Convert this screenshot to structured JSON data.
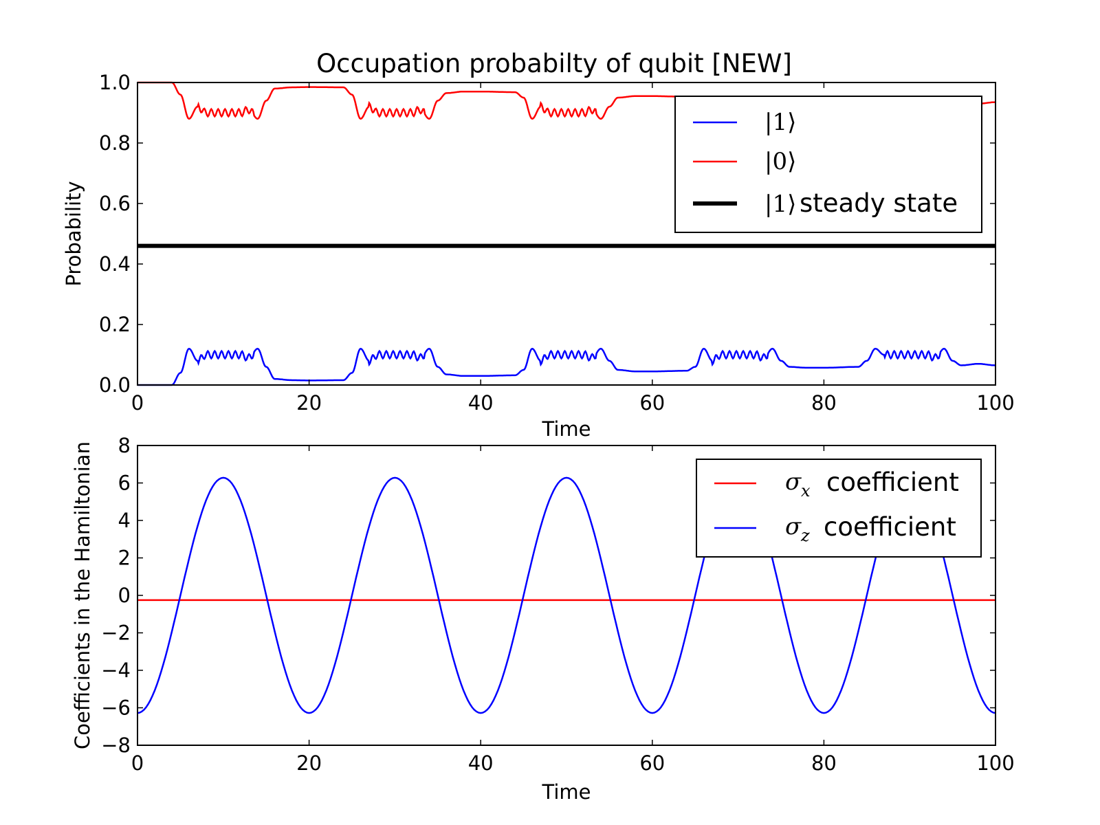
{
  "chart_data": [
    {
      "type": "line",
      "title": "Occupation probabilty of qubit [NEW]",
      "xlabel": "Time",
      "ylabel": "Probability",
      "xlim": [
        0,
        100
      ],
      "ylim": [
        0.0,
        1.0
      ],
      "xticks": [
        "0",
        "20",
        "40",
        "60",
        "80",
        "100"
      ],
      "yticks": [
        "0.0",
        "0.2",
        "0.4",
        "0.6",
        "0.8",
        "1.0"
      ],
      "grid": false,
      "legend_position": "top-right",
      "series": [
        {
          "name": "|1⟩",
          "color": "#0000ff",
          "x": [
            0,
            4,
            5,
            6,
            7,
            8,
            10,
            12,
            13,
            14,
            15,
            16,
            18,
            20,
            24,
            25,
            26,
            27,
            28,
            30,
            32,
            33,
            34,
            35,
            36,
            38,
            40,
            44,
            45,
            46,
            47,
            48,
            50,
            52,
            53,
            54,
            55,
            56,
            58,
            60,
            64,
            65,
            66,
            67,
            68,
            70,
            72,
            73,
            74,
            75,
            76,
            78,
            80,
            84,
            85,
            86,
            87,
            88,
            90,
            92,
            93,
            94,
            95,
            96,
            98,
            100
          ],
          "values": [
            0.0,
            0.0,
            0.04,
            0.12,
            0.08,
            0.1,
            0.1,
            0.1,
            0.09,
            0.12,
            0.06,
            0.02,
            0.016,
            0.015,
            0.016,
            0.04,
            0.12,
            0.08,
            0.1,
            0.1,
            0.1,
            0.09,
            0.12,
            0.06,
            0.035,
            0.03,
            0.03,
            0.032,
            0.05,
            0.12,
            0.08,
            0.1,
            0.1,
            0.1,
            0.09,
            0.12,
            0.08,
            0.05,
            0.045,
            0.045,
            0.047,
            0.06,
            0.12,
            0.08,
            0.1,
            0.1,
            0.1,
            0.09,
            0.12,
            0.08,
            0.06,
            0.057,
            0.057,
            0.06,
            0.08,
            0.12,
            0.1,
            0.1,
            0.1,
            0.1,
            0.09,
            0.12,
            0.08,
            0.065,
            0.07,
            0.065
          ]
        },
        {
          "name": "|0⟩",
          "color": "#ff0000",
          "x": [
            0,
            4,
            5,
            6,
            7,
            8,
            10,
            12,
            13,
            14,
            15,
            16,
            18,
            20,
            24,
            25,
            26,
            27,
            28,
            30,
            32,
            33,
            34,
            35,
            36,
            38,
            40,
            44,
            45,
            46,
            47,
            48,
            50,
            52,
            53,
            54,
            55,
            56,
            58,
            60,
            64,
            65,
            66,
            67,
            68,
            70,
            72,
            73,
            74,
            75,
            76,
            78,
            80,
            84,
            85,
            86,
            87,
            88,
            90,
            92,
            93,
            94,
            95,
            96,
            98,
            100
          ],
          "values": [
            1.0,
            1.0,
            0.96,
            0.88,
            0.92,
            0.9,
            0.9,
            0.9,
            0.91,
            0.88,
            0.94,
            0.98,
            0.984,
            0.985,
            0.984,
            0.96,
            0.88,
            0.92,
            0.9,
            0.9,
            0.9,
            0.91,
            0.88,
            0.94,
            0.965,
            0.97,
            0.97,
            0.968,
            0.95,
            0.88,
            0.92,
            0.9,
            0.9,
            0.9,
            0.91,
            0.88,
            0.92,
            0.95,
            0.955,
            0.955,
            0.953,
            0.94,
            0.88,
            0.92,
            0.9,
            0.9,
            0.9,
            0.91,
            0.88,
            0.92,
            0.94,
            0.943,
            0.943,
            0.94,
            0.92,
            0.88,
            0.9,
            0.9,
            0.9,
            0.9,
            0.91,
            0.88,
            0.92,
            0.935,
            0.93,
            0.935
          ]
        },
        {
          "name": "|1⟩ steady state",
          "color": "#000000",
          "x": [
            0,
            100
          ],
          "values": [
            0.46,
            0.46
          ]
        }
      ],
      "legend": [
        {
          "math": "|1⟩",
          "text": ""
        },
        {
          "math": "|0⟩",
          "text": ""
        },
        {
          "math": "|1⟩",
          "text": "steady state"
        }
      ]
    },
    {
      "type": "line",
      "title": "",
      "xlabel": "Time",
      "ylabel": "Coefficients in the Hamiltonian",
      "xlim": [
        0,
        100
      ],
      "ylim": [
        -8,
        8
      ],
      "xticks": [
        "0",
        "20",
        "40",
        "60",
        "80",
        "100"
      ],
      "yticks": [
        "−8",
        "−6",
        "−4",
        "−2",
        "0",
        "2",
        "4",
        "6",
        "8"
      ],
      "grid": false,
      "legend_position": "top-right",
      "series": [
        {
          "name": "σx coefficient",
          "color": "#ff0000",
          "function": "constant",
          "value": -0.25
        },
        {
          "name": "σz coefficient",
          "color": "#0000ff",
          "function": "-A*cos(2*pi*t/20)",
          "amplitude": 6.28,
          "period": 20
        }
      ],
      "legend": [
        {
          "symbol": "σ",
          "sub": "x",
          "text": "coefficient"
        },
        {
          "symbol": "σ",
          "sub": "z",
          "text": "coefficient"
        }
      ]
    }
  ]
}
